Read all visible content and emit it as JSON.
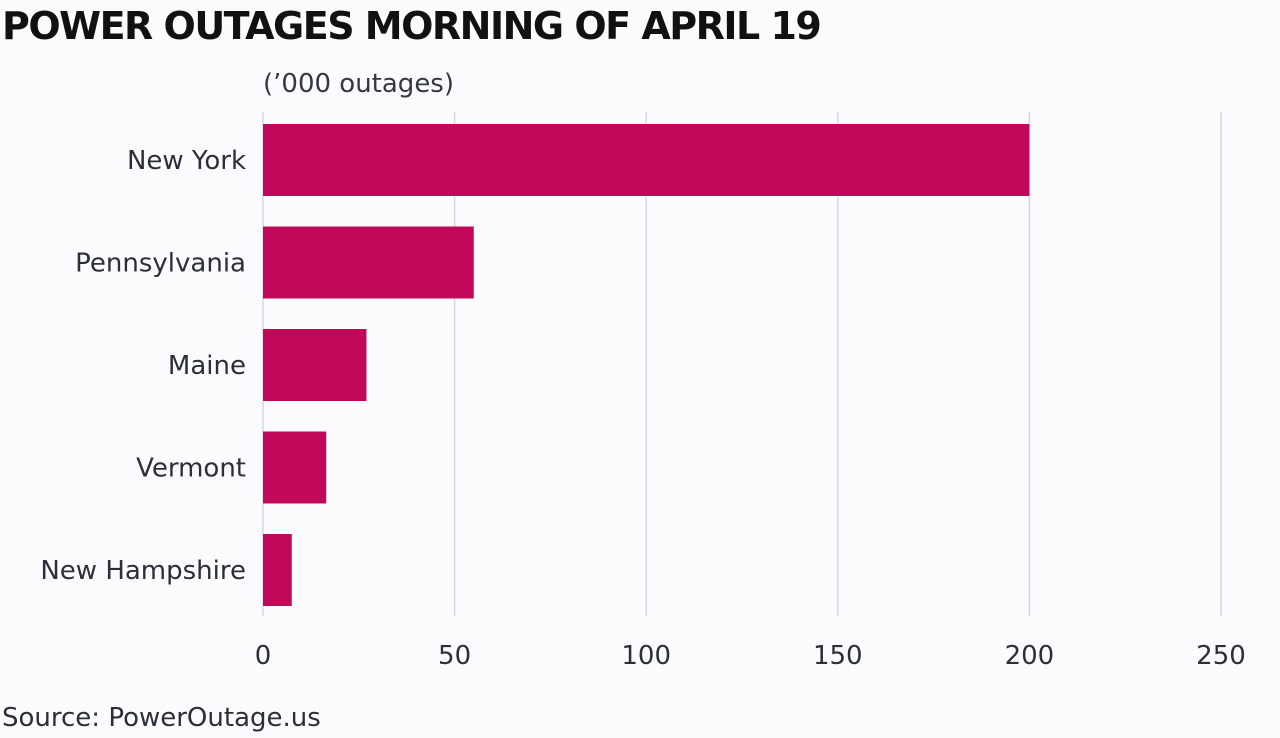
{
  "chart_data": {
    "type": "bar",
    "orientation": "horizontal",
    "title": "POWER OUTAGES MORNING OF APRIL 19",
    "subtitle": "(’000 outages)",
    "categories": [
      "New York",
      "Pennsylvania",
      "Maine",
      "Vermont",
      "New Hampshire"
    ],
    "values": [
      200,
      55,
      27,
      16.5,
      7.5
    ],
    "xlim": [
      0,
      250
    ],
    "xticks": [
      0,
      50,
      100,
      150,
      200,
      250
    ],
    "xticklabels": [
      "0",
      "50",
      "100",
      "150",
      "200",
      "250"
    ],
    "grid": "vertical",
    "source": "Source: PowerOutage.us",
    "colors": {
      "bar": "#c2085a",
      "grid": "#d5d8e2",
      "text": "#2a2f3a"
    }
  }
}
